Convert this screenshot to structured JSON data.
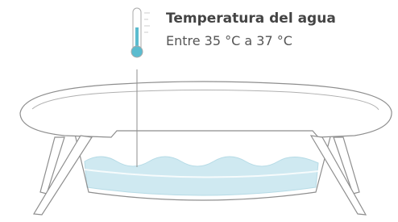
{
  "label": {
    "title": "Temperatura del agua",
    "text": "Entre 35 °C a 37 °C"
  }
}
